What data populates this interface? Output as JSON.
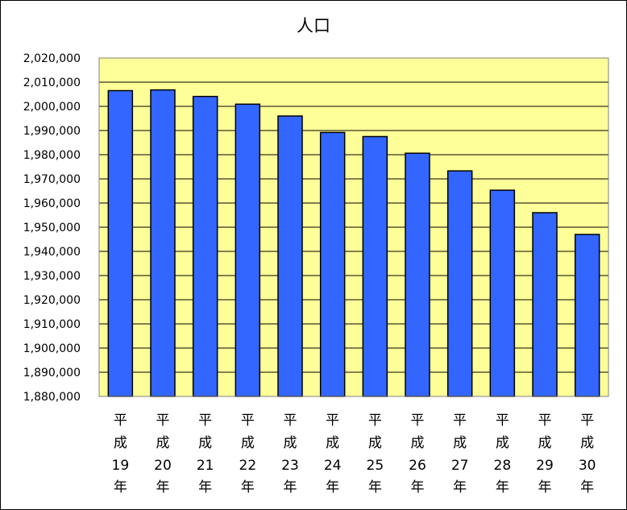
{
  "chart_data": {
    "type": "bar",
    "title": "人口",
    "categories": [
      [
        "平",
        "成",
        "19",
        "年"
      ],
      [
        "平",
        "成",
        "20",
        "年"
      ],
      [
        "平",
        "成",
        "21",
        "年"
      ],
      [
        "平",
        "成",
        "22",
        "年"
      ],
      [
        "平",
        "成",
        "23",
        "年"
      ],
      [
        "平",
        "成",
        "24",
        "年"
      ],
      [
        "平",
        "成",
        "25",
        "年"
      ],
      [
        "平",
        "成",
        "26",
        "年"
      ],
      [
        "平",
        "成",
        "27",
        "年"
      ],
      [
        "平",
        "成",
        "28",
        "年"
      ],
      [
        "平",
        "成",
        "29",
        "年"
      ],
      [
        "平",
        "成",
        "30",
        "年"
      ]
    ],
    "values": [
      2006500,
      2006800,
      2004100,
      2000900,
      1996000,
      1989200,
      1987500,
      1980600,
      1973300,
      1965300,
      1956000,
      1947000
    ],
    "ylim": [
      1880000,
      2020000
    ],
    "ytick_step": 10000,
    "ytick_labels": [
      "1,880,000",
      "1,890,000",
      "1,900,000",
      "1,910,000",
      "1,920,000",
      "1,930,000",
      "1,940,000",
      "1,950,000",
      "1,960,000",
      "1,970,000",
      "1,980,000",
      "1,990,000",
      "2,000,000",
      "2,010,000",
      "2,020,000"
    ],
    "grid": true,
    "colors": {
      "bar": "#3366ff",
      "plot_background": "#ffff99",
      "grid": "#000000"
    }
  }
}
